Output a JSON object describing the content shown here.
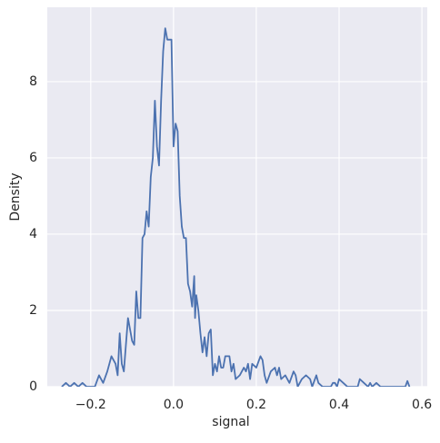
{
  "chart_data": {
    "type": "line",
    "xlabel": "signal",
    "ylabel": "Density",
    "x": [
      -0.27,
      -0.26,
      -0.25,
      -0.24,
      -0.23,
      -0.22,
      -0.21,
      -0.19,
      -0.18,
      -0.17,
      -0.16,
      -0.15,
      -0.14,
      -0.135,
      -0.13,
      -0.125,
      -0.12,
      -0.11,
      -0.1,
      -0.095,
      -0.09,
      -0.085,
      -0.08,
      -0.075,
      -0.07,
      -0.065,
      -0.06,
      -0.055,
      -0.05,
      -0.045,
      -0.04,
      -0.035,
      -0.03,
      -0.025,
      -0.02,
      -0.015,
      -0.01,
      -0.005,
      0,
      0.005,
      0.01,
      0.015,
      0.02,
      0.025,
      0.03,
      0.035,
      0.04,
      0.045,
      0.05,
      0.052,
      0.055,
      0.06,
      0.065,
      0.07,
      0.075,
      0.08,
      0.085,
      0.09,
      0.095,
      0.1,
      0.105,
      0.11,
      0.115,
      0.12,
      0.125,
      0.135,
      0.14,
      0.145,
      0.15,
      0.16,
      0.17,
      0.175,
      0.18,
      0.185,
      0.19,
      0.2,
      0.21,
      0.215,
      0.22,
      0.225,
      0.235,
      0.245,
      0.25,
      0.255,
      0.26,
      0.27,
      0.28,
      0.29,
      0.295,
      0.3,
      0.31,
      0.32,
      0.33,
      0.335,
      0.345,
      0.35,
      0.36,
      0.38,
      0.385,
      0.39,
      0.395,
      0.4,
      0.41,
      0.42,
      0.445,
      0.45,
      0.46,
      0.47,
      0.475,
      0.48,
      0.49,
      0.5,
      0.56,
      0.565,
      0.57
    ],
    "series": [
      {
        "color": "#4c72b0",
        "values": [
          0,
          0.1,
          0,
          0.1,
          0,
          0.1,
          0,
          0,
          0.3,
          0.1,
          0.4,
          0.8,
          0.6,
          0.3,
          1.4,
          0.6,
          0.4,
          1.8,
          1.2,
          1.1,
          2.5,
          1.8,
          1.8,
          3.9,
          4.0,
          4.6,
          4.2,
          5.5,
          6.0,
          7.5,
          6.3,
          5.8,
          7.5,
          8.8,
          9.4,
          9.1,
          9.1,
          9.1,
          6.3,
          6.9,
          6.7,
          5.0,
          4.2,
          3.9,
          3.9,
          2.7,
          2.5,
          2.1,
          2.9,
          1.8,
          2.4,
          2.0,
          1.4,
          0.9,
          1.3,
          0.8,
          1.4,
          1.5,
          0.3,
          0.6,
          0.4,
          0.8,
          0.5,
          0.5,
          0.8,
          0.8,
          0.4,
          0.6,
          0.2,
          0.3,
          0.5,
          0.4,
          0.6,
          0.2,
          0.6,
          0.5,
          0.8,
          0.7,
          0.3,
          0.1,
          0.4,
          0.5,
          0.3,
          0.5,
          0.2,
          0.3,
          0.1,
          0.4,
          0.3,
          0,
          0.2,
          0.3,
          0.2,
          0,
          0.3,
          0.1,
          0,
          0,
          0.1,
          0.1,
          0,
          0.2,
          0.1,
          0,
          0,
          0.2,
          0.1,
          0,
          0.1,
          0,
          0.1,
          0,
          0,
          0.15,
          0
        ]
      }
    ],
    "xlim": [
      -0.305,
      0.613
    ],
    "ylim": [
      0,
      9.95
    ],
    "xticks": [
      {
        "value": -0.2,
        "label": "−0.2"
      },
      {
        "value": 0,
        "label": "0.0"
      },
      {
        "value": 0.2,
        "label": "0.2"
      },
      {
        "value": 0.4,
        "label": "0.4"
      },
      {
        "value": 0.6,
        "label": "0.6"
      }
    ],
    "yticks": [
      0,
      2,
      4,
      6,
      8
    ],
    "grid": true
  }
}
